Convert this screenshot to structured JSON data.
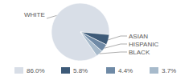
{
  "chart_data": {
    "type": "pie",
    "categories": [
      "WHITE",
      "ASIAN",
      "HISPANIC",
      "BLACK"
    ],
    "values": [
      86.0,
      5.8,
      4.4,
      3.7
    ],
    "value_labels": [
      "86.0%",
      "5.8%",
      "4.4%",
      "3.7%"
    ],
    "colors": [
      "#d8dee7",
      "#3d5a78",
      "#6f8aa6",
      "#a7bacb"
    ],
    "legend": "bottom"
  }
}
